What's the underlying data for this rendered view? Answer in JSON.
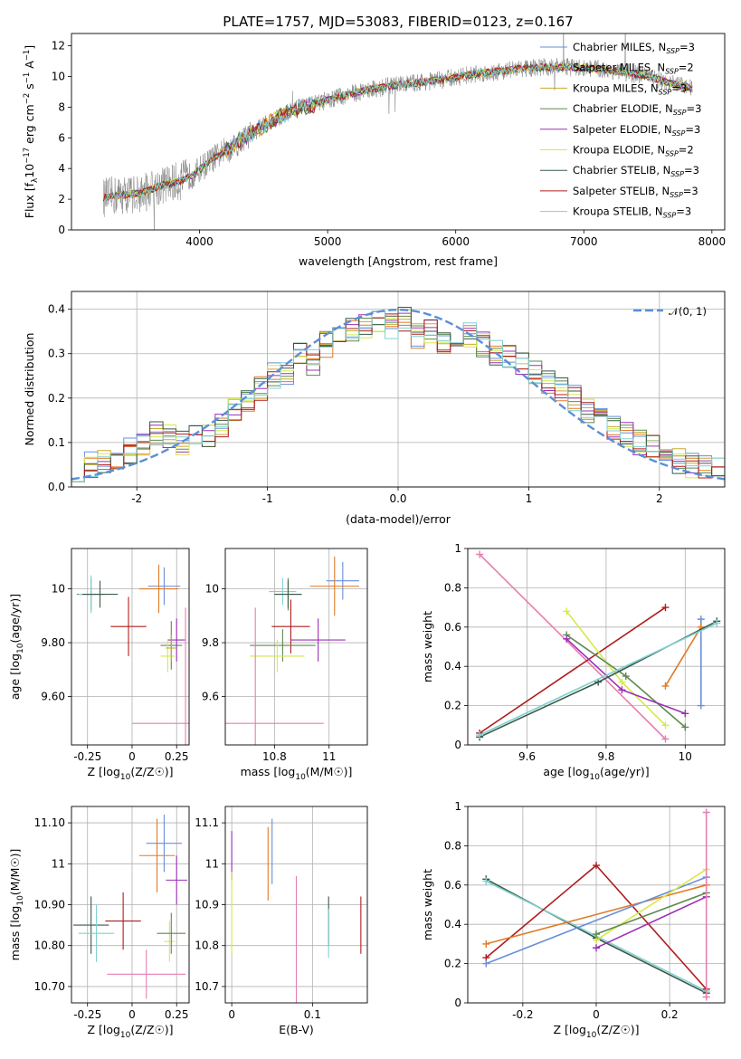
{
  "title": "PLATE=1757, MJD=53083, FIBERID=0123, z=0.167",
  "colors": {
    "Chabrier MILES": "#6a8fd8",
    "Salpeter MILES": "#e07b27",
    "Kroupa MILES": "#c8a832",
    "Chabrier ELODIE": "#5e8a4e",
    "Salpeter ELODIE": "#9b30b6",
    "Kroupa ELODIE": "#d8e84a",
    "Chabrier STELIB": "#3a5a48",
    "Salpeter STELIB": "#b01c1c",
    "Kroupa STELIB": "#80d0d0",
    "data": "#808080",
    "normal": "#5b8fd8",
    "pink": "#e87db0"
  },
  "legend_entries": [
    {
      "model": "Chabrier MILES",
      "n": "3"
    },
    {
      "model": "Salpeter MILES",
      "n": "2"
    },
    {
      "model": "Kroupa MILES",
      "n": "3"
    },
    {
      "model": "Chabrier ELODIE",
      "n": "3"
    },
    {
      "model": "Salpeter ELODIE",
      "n": "3"
    },
    {
      "model": "Kroupa ELODIE",
      "n": "2"
    },
    {
      "model": "Chabrier STELIB",
      "n": "3"
    },
    {
      "model": "Salpeter STELIB",
      "n": "3"
    },
    {
      "model": "Kroupa STELIB",
      "n": "3"
    }
  ],
  "chart_data": [
    {
      "id": "spectrum",
      "type": "line",
      "xlabel": "wavelength [Angstrom, rest frame]",
      "ylabel": "Flux [f",
      "xlim": [
        3000,
        8100
      ],
      "ylim": [
        0,
        12.8
      ],
      "xticks": [
        4000,
        5000,
        6000,
        7000,
        8000
      ],
      "yticks": [
        0,
        2,
        4,
        6,
        8,
        10,
        12
      ],
      "grid": false,
      "legend_placement": "right",
      "model_points": [
        [
          3250,
          2.1
        ],
        [
          3400,
          2.3
        ],
        [
          3550,
          2.4
        ],
        [
          3700,
          2.9
        ],
        [
          3850,
          3.2
        ],
        [
          3950,
          3.6
        ],
        [
          4100,
          4.6
        ],
        [
          4300,
          5.7
        ],
        [
          4500,
          6.8
        ],
        [
          4700,
          7.7
        ],
        [
          4900,
          8.2
        ],
        [
          5100,
          8.7
        ],
        [
          5300,
          9.1
        ],
        [
          5500,
          9.4
        ],
        [
          5700,
          9.6
        ],
        [
          5900,
          9.8
        ],
        [
          6100,
          10.1
        ],
        [
          6300,
          10.3
        ],
        [
          6500,
          10.5
        ],
        [
          6700,
          10.6
        ],
        [
          6900,
          10.6
        ],
        [
          7100,
          10.5
        ],
        [
          7300,
          10.3
        ],
        [
          7500,
          10.0
        ],
        [
          7700,
          9.5
        ],
        [
          7850,
          9.2
        ]
      ]
    },
    {
      "id": "residuals",
      "type": "bar",
      "xlabel": "(data-model)/error",
      "ylabel": "Normed distribution",
      "xlim": [
        -2.5,
        2.5
      ],
      "ylim": [
        0,
        0.44
      ],
      "xticks": [
        -2,
        -1,
        0,
        1,
        2
      ],
      "yticks": [
        0.0,
        0.1,
        0.2,
        0.3,
        0.4
      ],
      "grid": true,
      "legend": "𝒩(0, 1)",
      "legend_placement": "top-right",
      "bin_edges_range": [
        -2.5,
        2.5
      ],
      "bins": 50,
      "base_hist": [
        0.04,
        0.05,
        0.06,
        0.07,
        0.08,
        0.1,
        0.12,
        0.11,
        0.1,
        0.11,
        0.12,
        0.14,
        0.17,
        0.2,
        0.22,
        0.25,
        0.26,
        0.3,
        0.28,
        0.32,
        0.33,
        0.35,
        0.36,
        0.37,
        0.36,
        0.38,
        0.34,
        0.35,
        0.33,
        0.32,
        0.34,
        0.32,
        0.3,
        0.29,
        0.28,
        0.26,
        0.24,
        0.22,
        0.2,
        0.17,
        0.15,
        0.13,
        0.12,
        0.1,
        0.09,
        0.07,
        0.06,
        0.05,
        0.05,
        0.04
      ]
    },
    {
      "id": "age_vs_Z",
      "type": "scatter",
      "xlabel": "Z [log",
      "ylabel": "age  [log",
      "xlim": [
        -0.34,
        0.32
      ],
      "ylim": [
        9.42,
        10.15
      ],
      "xticks": [
        -0.25,
        0.0,
        0.25
      ],
      "yticks": [
        9.6,
        9.8,
        10.0
      ],
      "points": [
        {
          "model": "Chabrier MILES",
          "x": 0.18,
          "y": 10.01,
          "xerr": 0.09,
          "yerr": 0.07
        },
        {
          "model": "Salpeter MILES",
          "x": 0.15,
          "y": 10.0,
          "xerr": 0.11,
          "yerr": 0.09
        },
        {
          "model": "Chabrier ELODIE",
          "x": -0.23,
          "y": 9.98,
          "xerr": 0.08,
          "yerr": 0.06
        },
        {
          "model": "Kroupa STELIB",
          "x": -0.23,
          "y": 9.98,
          "xerr": 0.07,
          "yerr": 0.07
        },
        {
          "model": "Chabrier STELIB",
          "x": -0.18,
          "y": 9.98,
          "xerr": 0.1,
          "yerr": 0.05
        },
        {
          "model": "Salpeter STELIB",
          "x": -0.02,
          "y": 9.86,
          "xerr": 0.1,
          "yerr": 0.11
        },
        {
          "model": "Chabrier ELODIE",
          "x": 0.22,
          "y": 9.79,
          "xerr": 0.06,
          "yerr": 0.09
        },
        {
          "model": "Salpeter ELODIE",
          "x": 0.25,
          "y": 9.81,
          "xerr": 0.05,
          "yerr": 0.08
        },
        {
          "model": "Kroupa ELODIE",
          "x": 0.2,
          "y": 9.75,
          "xerr": 0.04,
          "yerr": 0.06
        },
        {
          "model": "Kroupa MILES",
          "x": 0.22,
          "y": 9.78,
          "xerr": 0.03,
          "yerr": 0.05
        },
        {
          "model": "pink",
          "x": 0.3,
          "y": 9.5,
          "xerr": 0.3,
          "yerr": 0.43
        }
      ]
    },
    {
      "id": "age_vs_mass",
      "type": "scatter",
      "xlabel": "mass [log",
      "ylabel": "",
      "xlim": [
        10.62,
        11.14
      ],
      "ylim": [
        9.42,
        10.15
      ],
      "xticks": [
        10.8,
        11.0
      ],
      "yticks": [
        9.6,
        9.8,
        10.0
      ],
      "points": [
        {
          "model": "Chabrier MILES",
          "x": 11.05,
          "y": 10.03,
          "xerr": 0.06,
          "yerr": 0.07
        },
        {
          "model": "Salpeter MILES",
          "x": 11.02,
          "y": 10.01,
          "xerr": 0.09,
          "yerr": 0.11
        },
        {
          "model": "Chabrier ELODIE",
          "x": 10.85,
          "y": 9.98,
          "xerr": 0.05,
          "yerr": 0.06
        },
        {
          "model": "Kroupa STELIB",
          "x": 10.83,
          "y": 9.99,
          "xerr": 0.05,
          "yerr": 0.05
        },
        {
          "model": "Chabrier STELIB",
          "x": 10.85,
          "y": 9.98,
          "xerr": 0.05,
          "yerr": 0.05
        },
        {
          "model": "Salpeter STELIB",
          "x": 10.86,
          "y": 9.86,
          "xerr": 0.07,
          "yerr": 0.1
        },
        {
          "model": "Chabrier ELODIE",
          "x": 10.83,
          "y": 9.79,
          "xerr": 0.12,
          "yerr": 0.06
        },
        {
          "model": "Salpeter ELODIE",
          "x": 10.96,
          "y": 9.81,
          "xerr": 0.1,
          "yerr": 0.08
        },
        {
          "model": "Kroupa ELODIE",
          "x": 10.81,
          "y": 9.75,
          "xerr": 0.1,
          "yerr": 0.06
        },
        {
          "model": "pink",
          "x": 10.73,
          "y": 9.5,
          "xerr": 0.25,
          "yerr": 0.43
        }
      ]
    },
    {
      "id": "weight_vs_age",
      "type": "line",
      "xlabel": "age  [log",
      "ylabel": "mass weight",
      "xlim": [
        9.45,
        10.1
      ],
      "ylim": [
        0.0,
        1.0
      ],
      "xticks": [
        9.6,
        9.8,
        10.0
      ],
      "yticks": [
        0.0,
        0.2,
        0.4,
        0.6,
        0.8,
        1.0
      ],
      "series": [
        {
          "model": "pink",
          "x": [
            9.48,
            9.95
          ],
          "y": [
            0.97,
            0.03
          ]
        },
        {
          "model": "Salpeter STELIB",
          "x": [
            9.48,
            9.95
          ],
          "y": [
            0.06,
            0.7
          ]
        },
        {
          "model": "Kroupa ELODIE",
          "x": [
            9.7,
            9.84,
            9.95
          ],
          "y": [
            0.68,
            0.32,
            0.1
          ]
        },
        {
          "model": "Chabrier ELODIE",
          "x": [
            9.7,
            9.85,
            10.0
          ],
          "y": [
            0.56,
            0.35,
            0.09
          ]
        },
        {
          "model": "Salpeter ELODIE",
          "x": [
            9.7,
            9.84,
            10.0
          ],
          "y": [
            0.54,
            0.28,
            0.16
          ]
        },
        {
          "model": "Chabrier MILES",
          "x": [
            10.04,
            10.04
          ],
          "y": [
            0.2,
            0.64
          ]
        },
        {
          "model": "Salpeter MILES",
          "x": [
            9.95,
            10.04
          ],
          "y": [
            0.3,
            0.6
          ]
        },
        {
          "model": "Chabrier STELIB",
          "x": [
            9.48,
            9.78,
            10.08
          ],
          "y": [
            0.04,
            0.32,
            0.63
          ]
        },
        {
          "model": "Kroupa STELIB",
          "x": [
            9.48,
            10.08
          ],
          "y": [
            0.05,
            0.62
          ]
        }
      ]
    },
    {
      "id": "mass_vs_Z",
      "type": "scatter",
      "xlabel": "Z [log",
      "ylabel": "mass [log",
      "xlim": [
        -0.34,
        0.32
      ],
      "ylim": [
        10.66,
        11.14
      ],
      "xticks": [
        -0.25,
        0.0,
        0.25
      ],
      "yticks": [
        10.7,
        10.8,
        10.9,
        11.0,
        11.1
      ],
      "points": [
        {
          "model": "Chabrier MILES",
          "x": 0.18,
          "y": 11.05,
          "xerr": 0.1,
          "yerr": 0.07
        },
        {
          "model": "Salpeter MILES",
          "x": 0.14,
          "y": 11.02,
          "xerr": 0.1,
          "yerr": 0.09
        },
        {
          "model": "Salpeter ELODIE",
          "x": 0.25,
          "y": 10.96,
          "xerr": 0.06,
          "yerr": 0.06
        },
        {
          "model": "Kroupa ELODIE",
          "x": 0.21,
          "y": 10.81,
          "xerr": 0.03,
          "yerr": 0.05
        },
        {
          "model": "Chabrier ELODIE",
          "x": 0.22,
          "y": 10.83,
          "xerr": 0.08,
          "yerr": 0.05
        },
        {
          "model": "Chabrier STELIB",
          "x": -0.23,
          "y": 10.85,
          "xerr": 0.1,
          "yerr": 0.07
        },
        {
          "model": "Kroupa STELIB",
          "x": -0.2,
          "y": 10.83,
          "xerr": 0.1,
          "yerr": 0.07
        },
        {
          "model": "Salpeter STELIB",
          "x": -0.05,
          "y": 10.86,
          "xerr": 0.1,
          "yerr": 0.07
        },
        {
          "model": "pink",
          "x": 0.08,
          "y": 10.73,
          "xerr": 0.22,
          "yerr": 0.06
        }
      ]
    },
    {
      "id": "mass_vs_ebv",
      "type": "scatter",
      "xlabel": "E(B-V)",
      "ylabel": "",
      "xlim": [
        -0.008,
        0.168
      ],
      "ylim": [
        10.66,
        11.14
      ],
      "xticks": [
        0.0,
        0.1
      ],
      "yticks": [
        10.7,
        10.8,
        10.9,
        11.0,
        11.1
      ],
      "points": [
        {
          "model": "Salpeter ELODIE",
          "x": 0.0,
          "y": 11.02,
          "xerr": 0.0,
          "yerr": 0.06
        },
        {
          "model": "Kroupa ELODIE",
          "x": 0.0,
          "y": 10.88,
          "xerr": 0.0,
          "yerr": 0.1
        },
        {
          "model": "Chabrier MILES",
          "x": 0.05,
          "y": 11.03,
          "xerr": 0.0,
          "yerr": 0.08
        },
        {
          "model": "Salpeter MILES",
          "x": 0.045,
          "y": 11.0,
          "xerr": 0.0,
          "yerr": 0.09
        },
        {
          "model": "pink",
          "x": 0.08,
          "y": 10.8,
          "xerr": 0.0,
          "yerr": 0.17
        },
        {
          "model": "Chabrier STELIB",
          "x": 0.12,
          "y": 10.86,
          "xerr": 0.0,
          "yerr": 0.06
        },
        {
          "model": "Kroupa STELIB",
          "x": 0.12,
          "y": 10.83,
          "xerr": 0.0,
          "yerr": 0.06
        },
        {
          "model": "Salpeter STELIB",
          "x": 0.16,
          "y": 10.85,
          "xerr": 0.0,
          "yerr": 0.07
        }
      ]
    },
    {
      "id": "weight_vs_Z",
      "type": "line",
      "xlabel": "Z [log",
      "ylabel": "mass weight",
      "xlim": [
        -0.35,
        0.35
      ],
      "ylim": [
        0.0,
        1.0
      ],
      "xticks": [
        -0.2,
        0.0,
        0.2
      ],
      "yticks": [
        0.0,
        0.2,
        0.4,
        0.6,
        0.8,
        1.0
      ],
      "series": [
        {
          "model": "Chabrier STELIB",
          "x": [
            -0.3,
            0.0,
            0.3
          ],
          "y": [
            0.63,
            0.33,
            0.05
          ]
        },
        {
          "model": "Kroupa STELIB",
          "x": [
            -0.3,
            0.3
          ],
          "y": [
            0.62,
            0.06
          ]
        },
        {
          "model": "Salpeter STELIB",
          "x": [
            -0.3,
            0.0,
            0.3
          ],
          "y": [
            0.23,
            0.7,
            0.07
          ]
        },
        {
          "model": "Salpeter MILES",
          "x": [
            -0.3,
            0.3
          ],
          "y": [
            0.3,
            0.6
          ]
        },
        {
          "model": "Chabrier MILES",
          "x": [
            -0.3,
            0.3
          ],
          "y": [
            0.2,
            0.64
          ]
        },
        {
          "model": "Kroupa ELODIE",
          "x": [
            0.0,
            0.3
          ],
          "y": [
            0.32,
            0.68
          ]
        },
        {
          "model": "Chabrier ELODIE",
          "x": [
            0.0,
            0.3
          ],
          "y": [
            0.35,
            0.56
          ]
        },
        {
          "model": "Salpeter ELODIE",
          "x": [
            0.0,
            0.3
          ],
          "y": [
            0.28,
            0.54
          ]
        },
        {
          "model": "pink",
          "x": [
            0.3,
            0.3
          ],
          "y": [
            0.03,
            0.97
          ]
        }
      ]
    }
  ]
}
